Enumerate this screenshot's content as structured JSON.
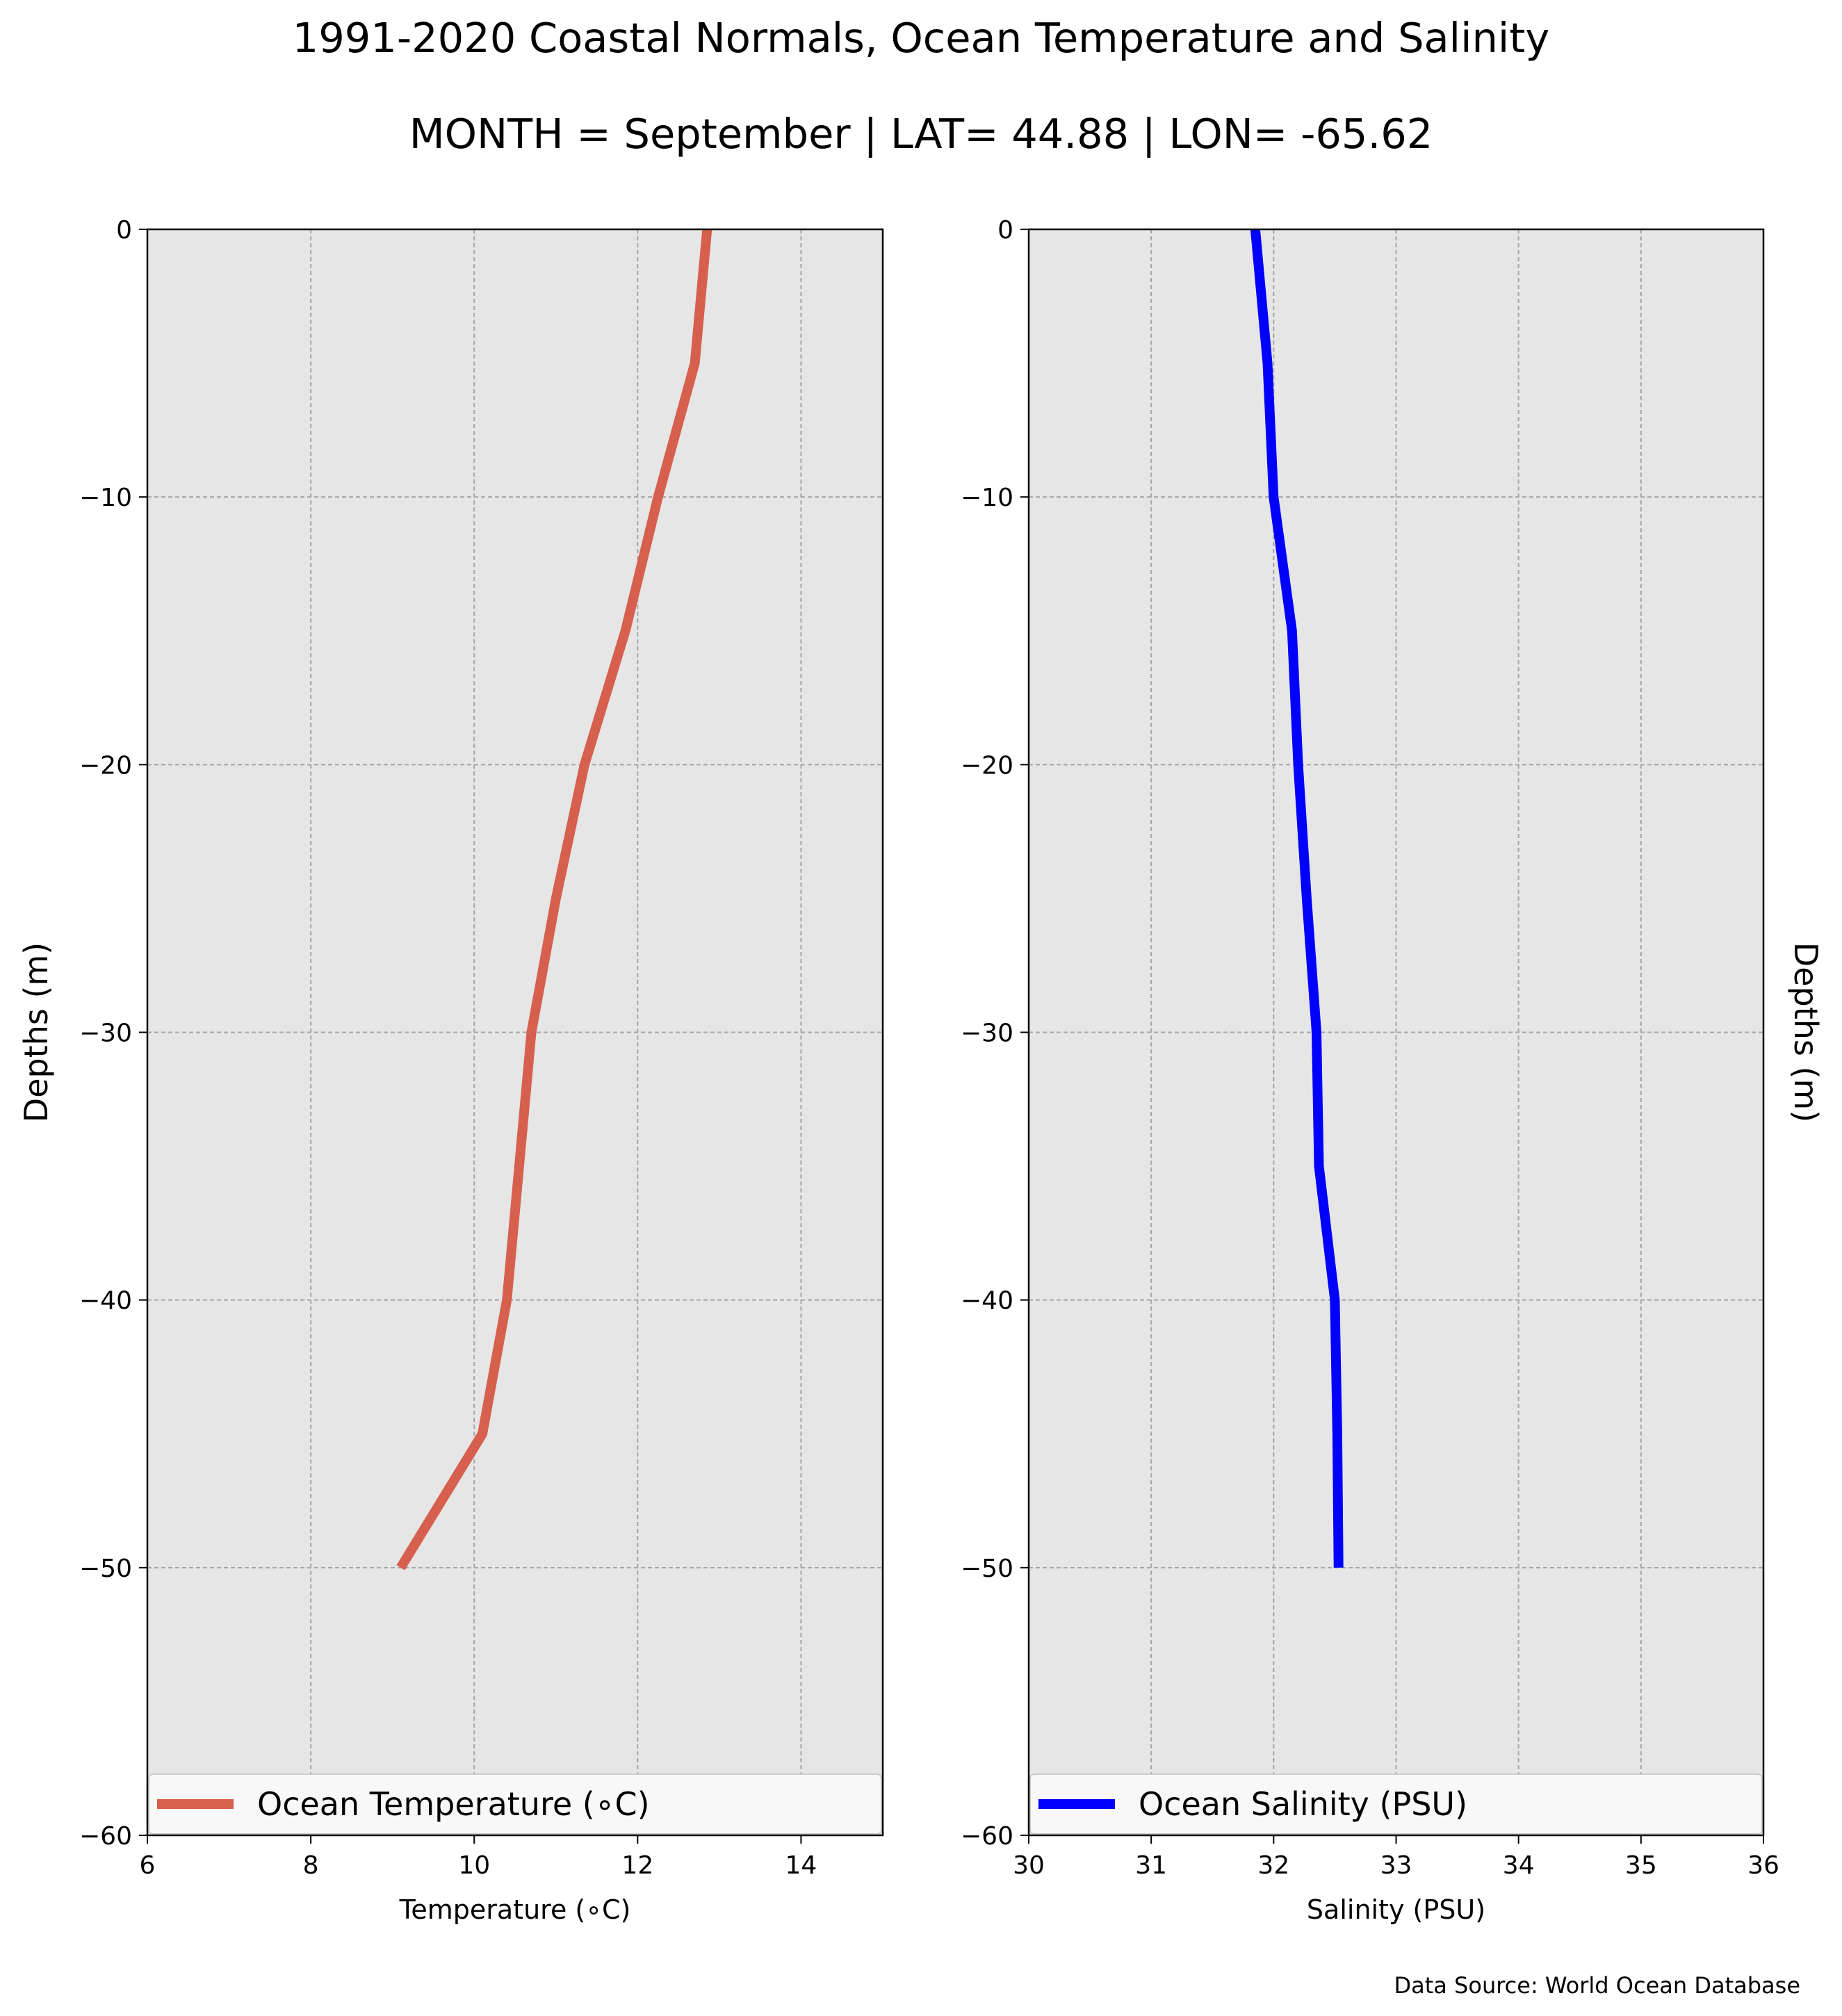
{
  "header": {
    "title": "1991-2020 Coastal Normals, Ocean Temperature and Salinity",
    "subtitle": "MONTH = September | LAT= 44.88 | LON= -65.62"
  },
  "footer": {
    "source": "Data Source: World Ocean Database"
  },
  "colors": {
    "temperature": "#d65f4e",
    "salinity": "#0000ff",
    "plot_bg": "#e6e6e6",
    "grid": "#a6a6a6"
  },
  "chart_data": [
    {
      "type": "line",
      "title": "",
      "xlabel": "Temperature ($^\\circ$C)",
      "xlabel_text": "Temperature (∘C)",
      "ylabel": "Depths (m)",
      "xlim": [
        6,
        15
      ],
      "ylim": [
        -60,
        0
      ],
      "xticks": [
        6,
        8,
        10,
        12,
        14
      ],
      "yticks": [
        0,
        -10,
        -20,
        -30,
        -40,
        -50,
        -60
      ],
      "grid": true,
      "legend_position": "bottom",
      "series": [
        {
          "name": "Ocean Temperature (∘C)",
          "color": "#d65f4e",
          "x": [
            12.85,
            12.7,
            12.25,
            11.85,
            11.35,
            11.0,
            10.7,
            10.55,
            10.4,
            10.1,
            9.1
          ],
          "y": [
            0,
            -5,
            -10,
            -15,
            -20,
            -25,
            -30,
            -35,
            -40,
            -45,
            -50
          ]
        }
      ]
    },
    {
      "type": "line",
      "title": "",
      "xlabel": "Salinity (PSU)",
      "ylabel": "Depths (m)",
      "xlim": [
        30,
        36
      ],
      "ylim": [
        -60,
        0
      ],
      "xticks": [
        30,
        31,
        32,
        33,
        34,
        35,
        36
      ],
      "yticks": [
        0,
        -10,
        -20,
        -30,
        -40,
        -50,
        -60
      ],
      "grid": true,
      "legend_position": "bottom",
      "series": [
        {
          "name": "Ocean Salinity (PSU)",
          "color": "#0000ff",
          "x": [
            31.85,
            31.95,
            32.0,
            32.15,
            32.2,
            32.27,
            32.35,
            32.37,
            32.5,
            32.52,
            32.53
          ],
          "y": [
            0,
            -5,
            -10,
            -15,
            -20,
            -25,
            -30,
            -35,
            -40,
            -45,
            -50
          ]
        }
      ]
    }
  ]
}
